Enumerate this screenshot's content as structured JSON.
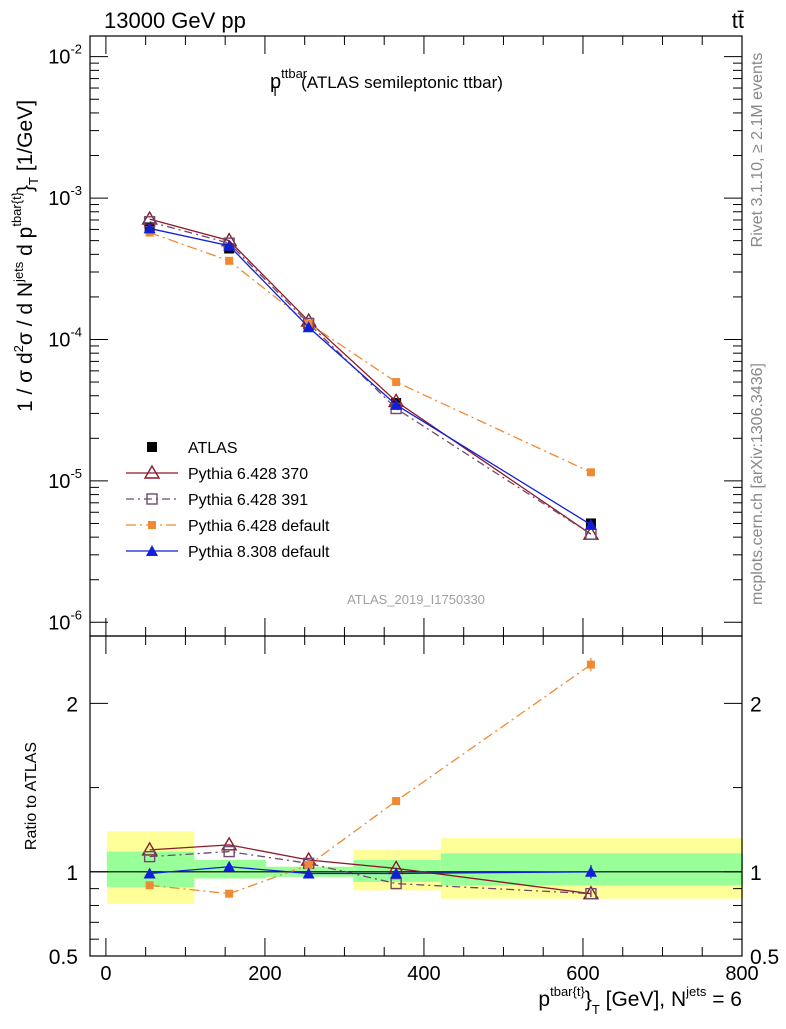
{
  "header": {
    "left": "13000 GeV pp",
    "right": "tt̄"
  },
  "side_labels": {
    "rivet": "Rivet 3.1.10, ≥ 2.1M events",
    "mcplots": "mcplots.cern.ch [arXiv:1306.3436]"
  },
  "chart_data": [
    {
      "type": "line",
      "title": "p_T^ttbar (ATLAS semileptonic ttbar)",
      "title_main": "p",
      "title_sub": "T",
      "title_sup": "ttbar",
      "title_rest": "(ATLAS semileptonic ttbar)",
      "ylabel": "1 / σ d²σ / d N^jets d p^tbar{t}_T [1/GeV]",
      "ylabel_parts": {
        "a": "1 / σ d",
        "b": "2",
        "c": "σ / d N",
        "d": "jets",
        "e": " d p",
        "f": "tbar{t}",
        "g": "}",
        "h": "T",
        "i": " [1/GeV]"
      },
      "yscale": "log",
      "ylim": [
        8e-07,
        0.014
      ],
      "xlim": [
        -20,
        800
      ],
      "ytick_labels": [
        {
          "base": "10",
          "exp": "-6",
          "v": 1e-06
        },
        {
          "base": "10",
          "exp": "-5",
          "v": 1e-05
        },
        {
          "base": "10",
          "exp": "-4",
          "v": 0.0001
        },
        {
          "base": "10",
          "exp": "-3",
          "v": 0.001
        },
        {
          "base": "10",
          "exp": "-2",
          "v": 0.01
        }
      ],
      "watermark": "ATLAS_2019_I1750330",
      "legend_position": "lower-left",
      "x": [
        55,
        155,
        255,
        365,
        610
      ],
      "series": [
        {
          "name": "ATLAS",
          "values": [
            0.00062,
            0.00044,
            0.000125,
            3.55e-05,
            5e-06
          ],
          "color": "#000000",
          "marker": "square-filled",
          "dash": ""
        },
        {
          "name": "Pythia 6.428 370",
          "values": [
            0.00071,
            0.0005,
            0.000135,
            3.65e-05,
            4.2e-06
          ],
          "color": "#8c1a2a",
          "marker": "triangle-open",
          "dash": ""
        },
        {
          "name": "Pythia 6.428 391",
          "values": [
            0.00068,
            0.00048,
            0.00013,
            3.25e-05,
            4.2e-06
          ],
          "color": "#6e4a6e",
          "marker": "square-open",
          "dash": "8,4,2,4"
        },
        {
          "name": "Pythia 6.428 default",
          "values": [
            0.00057,
            0.00036,
            0.00013,
            5e-05,
            1.15e-05
          ],
          "color": "#f08a32",
          "marker": "square-filled-small",
          "dash": "10,4,2,4"
        },
        {
          "name": "Pythia 8.308 default",
          "values": [
            0.00061,
            0.00046,
            0.000122,
            3.45e-05,
            4.9e-06
          ],
          "color": "#1020d8",
          "marker": "triangle-filled",
          "dash": ""
        }
      ]
    },
    {
      "type": "line",
      "ylabel": "Ratio to ATLAS",
      "xlabel": "p^tbar{t}_T [GeV], N^jets = 6",
      "xlabel_parts": {
        "a": "p",
        "b": "tbar{t}",
        "c": "}",
        "d": "T",
        "e": " [GeV], N",
        "f": "jets",
        "g": " = 6"
      },
      "xlim": [
        -20,
        800
      ],
      "ylim": [
        0.5,
        2.4
      ],
      "x_ticks": [
        0,
        200,
        400,
        600,
        800
      ],
      "y_ticks": [
        0.5,
        1,
        2
      ],
      "y_tick_labels": [
        "0.5",
        "1",
        "2"
      ],
      "reference": 1,
      "bands": [
        {
          "x0": 0,
          "x1": 110,
          "inner": [
            0.91,
            1.12
          ],
          "outer": [
            0.81,
            1.24
          ]
        },
        {
          "x0": 110,
          "x1": 200,
          "inner": [
            0.96,
            1.07
          ],
          "outer": [
            0.96,
            1.07
          ]
        },
        {
          "x0": 200,
          "x1": 310,
          "inner": [
            0.97,
            1.03
          ],
          "outer": [
            0.97,
            1.03
          ]
        },
        {
          "x0": 310,
          "x1": 420,
          "inner": [
            0.94,
            1.07
          ],
          "outer": [
            0.89,
            1.13
          ]
        },
        {
          "x0": 420,
          "x1": 800,
          "inner": [
            0.92,
            1.11
          ],
          "outer": [
            0.84,
            1.2
          ]
        }
      ],
      "x": [
        55,
        155,
        255,
        365,
        610
      ],
      "series": [
        {
          "name": "Pythia 6.428 370",
          "values": [
            1.13,
            1.16,
            1.07,
            1.02,
            0.87
          ],
          "errors": [
            0,
            0,
            0,
            0,
            0.02
          ],
          "color": "#8c1a2a",
          "marker": "triangle-open",
          "dash": ""
        },
        {
          "name": "Pythia 6.428 391",
          "values": [
            1.09,
            1.12,
            1.05,
            0.93,
            0.87
          ],
          "errors": [
            0,
            0,
            0,
            0,
            0.02
          ],
          "color": "#6e4a6e",
          "marker": "square-open",
          "dash": "8,4,2,4"
        },
        {
          "name": "Pythia 6.428 default",
          "values": [
            0.92,
            0.87,
            1.04,
            1.42,
            2.23
          ],
          "errors": [
            0,
            0,
            0,
            0.02,
            0.04
          ],
          "color": "#f08a32",
          "marker": "square-filled-small",
          "dash": "10,4,2,4"
        },
        {
          "name": "Pythia 8.308 default",
          "values": [
            0.99,
            1.03,
            0.99,
            0.99,
            1.0
          ],
          "errors": [
            0,
            0,
            0,
            0.02,
            0.04
          ],
          "color": "#1020d8",
          "marker": "triangle-filled",
          "dash": ""
        }
      ]
    }
  ]
}
